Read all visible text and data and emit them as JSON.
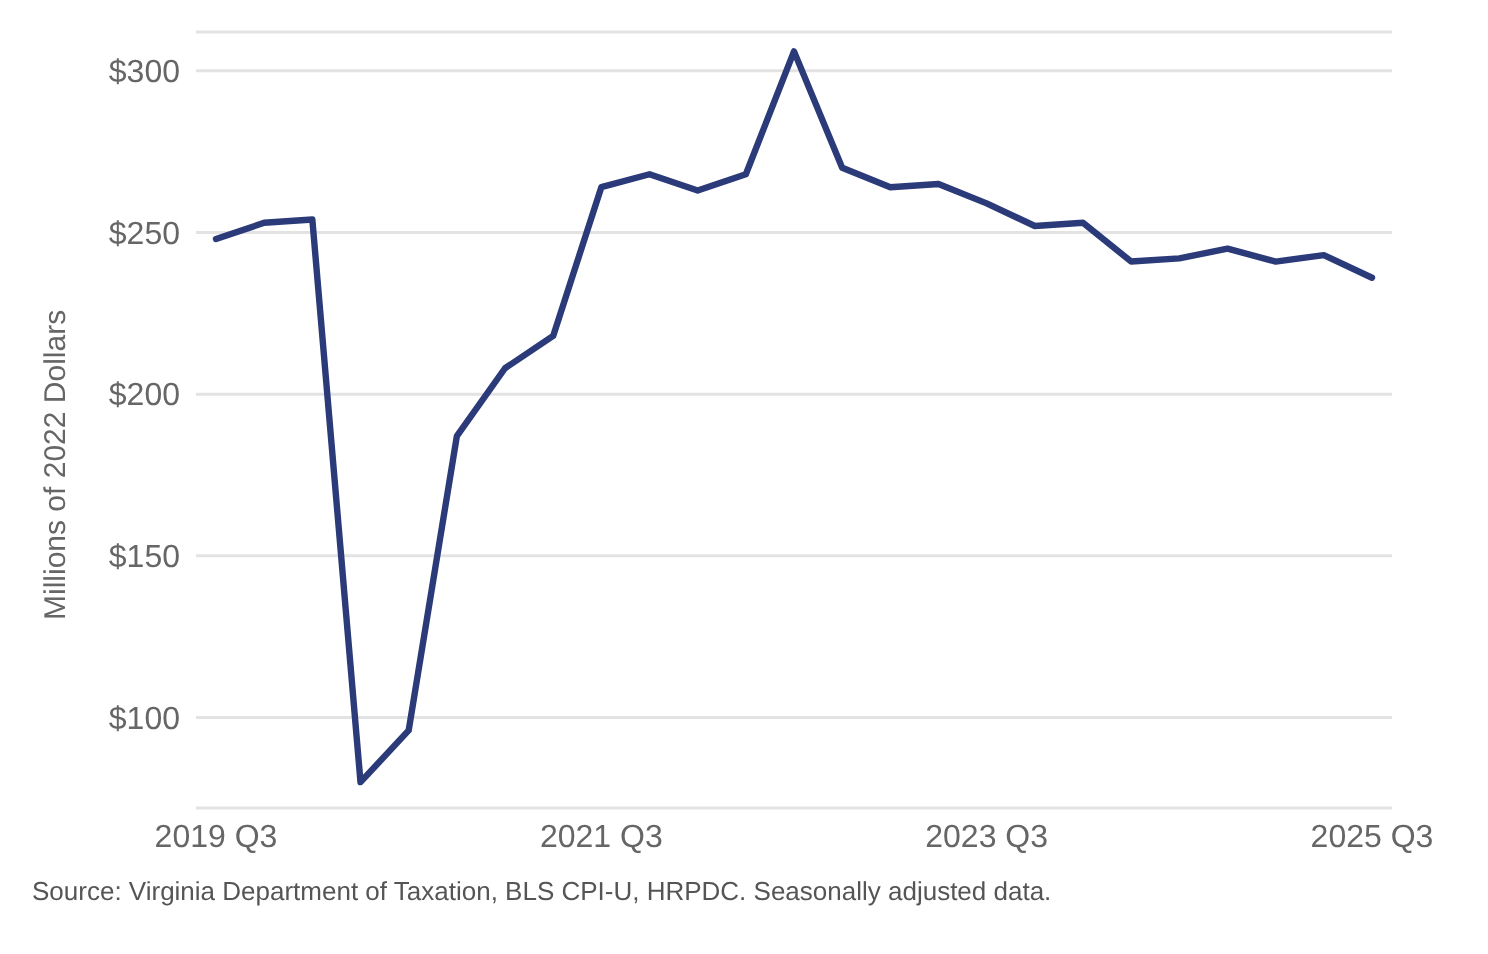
{
  "chart_data": {
    "type": "line",
    "ylabel": "Millions of 2022 Dollars",
    "categories": [
      "2019 Q3",
      null,
      null,
      null,
      null,
      null,
      null,
      null,
      "2021 Q3",
      null,
      null,
      null,
      null,
      null,
      null,
      null,
      "2023 Q3",
      null,
      null,
      null,
      null,
      null,
      null,
      null,
      "2025 Q3"
    ],
    "series": [
      {
        "color": "#2b3a78",
        "values": [
          248,
          253,
          254,
          80,
          96,
          187,
          208,
          218,
          264,
          268,
          263,
          268,
          306,
          270,
          264,
          265,
          259,
          252,
          253,
          241,
          242,
          245,
          241,
          243,
          236
        ]
      }
    ],
    "ylim": [
      72,
      312
    ],
    "yticks": [
      {
        "value": 100,
        "label": "$100"
      },
      {
        "value": 150,
        "label": "$150"
      },
      {
        "value": 200,
        "label": "$200"
      },
      {
        "value": 250,
        "label": "$250"
      },
      {
        "value": 300,
        "label": "$300"
      }
    ],
    "grid": "y",
    "marker": "none",
    "line_style": "solid",
    "annotations": [
      "Source: Virginia Department of Taxation, BLS CPI-U, HRPDC. Seasonally adjusted data."
    ]
  }
}
